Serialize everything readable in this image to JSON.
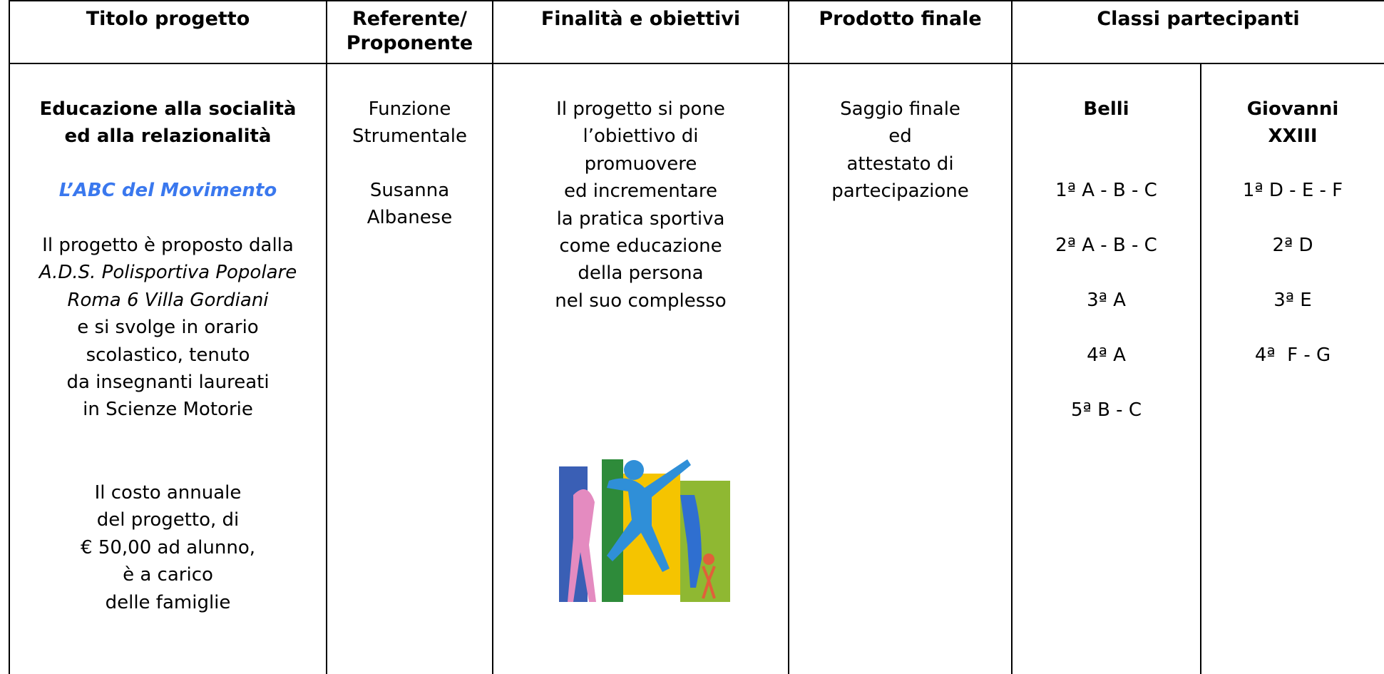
{
  "table": {
    "header": [
      "Titolo progetto",
      "Referente/ Proponente",
      "Finalità e obiettivi",
      "Prodotto finale",
      "Classi partecipanti"
    ],
    "row": {
      "titolo": {
        "name": [
          "Educazione alla socialità",
          "ed alla relazionalità"
        ],
        "subtitle": "L’ABC del Movimento",
        "description": [
          "Il progetto è proposto dalla",
          "A.D.S. Polisportiva Popolare",
          "Roma 6 Villa Gordiani",
          "e si svolge in orario",
          "scolastico, tenuto",
          "da insegnanti laureati",
          "in Scienze Motorie"
        ],
        "cost": [
          "Il costo annuale",
          "del progetto, di",
          "€ 50,00 ad alunno,",
          "è a carico",
          "delle famiglie"
        ]
      },
      "referente": {
        "role": [
          "Funzione",
          "Strumentale"
        ],
        "name": [
          "Susanna",
          "Albanese"
        ]
      },
      "finalita": [
        "Il progetto si pone",
        "l’obiettivo di",
        "promuovere",
        "ed incrementare",
        "la pratica sportiva",
        "come educazione",
        "della persona",
        "nel suo complesso"
      ],
      "prodotto": [
        "Saggio finale",
        "ed",
        "attestato di",
        "partecipazione"
      ],
      "classi": [
        {
          "school": [
            "Belli"
          ],
          "classes": [
            "1ª A - B - C",
            "2ª A - B - C",
            "3ª A",
            "4ª A",
            "5ª B - C"
          ]
        },
        {
          "school": [
            "Giovanni",
            "XXIII"
          ],
          "classes": [
            "1ª D - E - F",
            "2ª D",
            "3ª E",
            "4ª  F - G"
          ]
        }
      ]
    }
  }
}
